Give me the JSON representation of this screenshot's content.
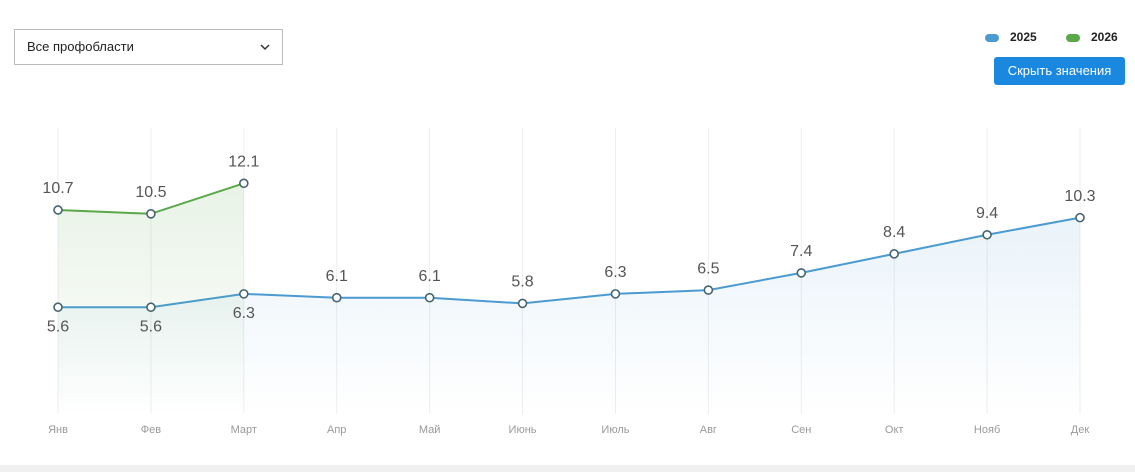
{
  "controls": {
    "dropdown": "Все профобласти",
    "button": "Скрыть значения"
  },
  "chart_data": {
    "type": "line",
    "categories": [
      "Янв",
      "Фев",
      "Март",
      "Апр",
      "Май",
      "Июнь",
      "Июль",
      "Авг",
      "Сен",
      "Окт",
      "Нояб",
      "Дек"
    ],
    "series": [
      {
        "name": "2025",
        "color": "#4b9bd1",
        "values": [
          5.6,
          5.6,
          6.3,
          6.1,
          6.1,
          5.8,
          6.3,
          6.5,
          7.4,
          8.4,
          9.4,
          10.3
        ]
      },
      {
        "name": "2026",
        "color": "#5aa84a",
        "values": [
          10.7,
          10.5,
          12.1,
          null,
          null,
          null,
          null,
          null,
          null,
          null,
          null,
          null
        ]
      }
    ],
    "ylim": [
      0,
      15
    ],
    "grid": true,
    "legend": "top-right"
  }
}
